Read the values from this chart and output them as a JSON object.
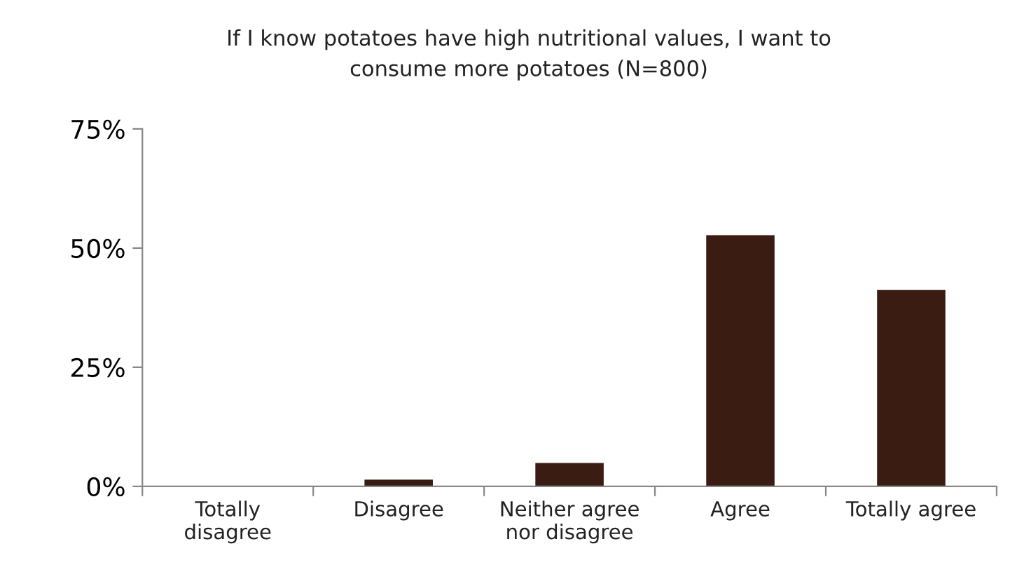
{
  "chart_data": {
    "type": "bar",
    "title": "If I know potatoes have high nutritional values, I want to\nconsume more potatoes (N=800)",
    "categories": [
      "Totally\ndisagree",
      "Disagree",
      "Neither agree\nnor disagree",
      "Agree",
      "Totally agree"
    ],
    "values": [
      0,
      1.4,
      4.9,
      52.7,
      41.2
    ],
    "color": "#3a1c12",
    "ylim": [
      0,
      75
    ],
    "yticks": [
      {
        "value": 0,
        "label": "0%"
      },
      {
        "value": 25,
        "label": "25%"
      },
      {
        "value": 50,
        "label": "50%"
      },
      {
        "value": 75,
        "label": "75%"
      }
    ],
    "grid": false,
    "legend": false
  }
}
